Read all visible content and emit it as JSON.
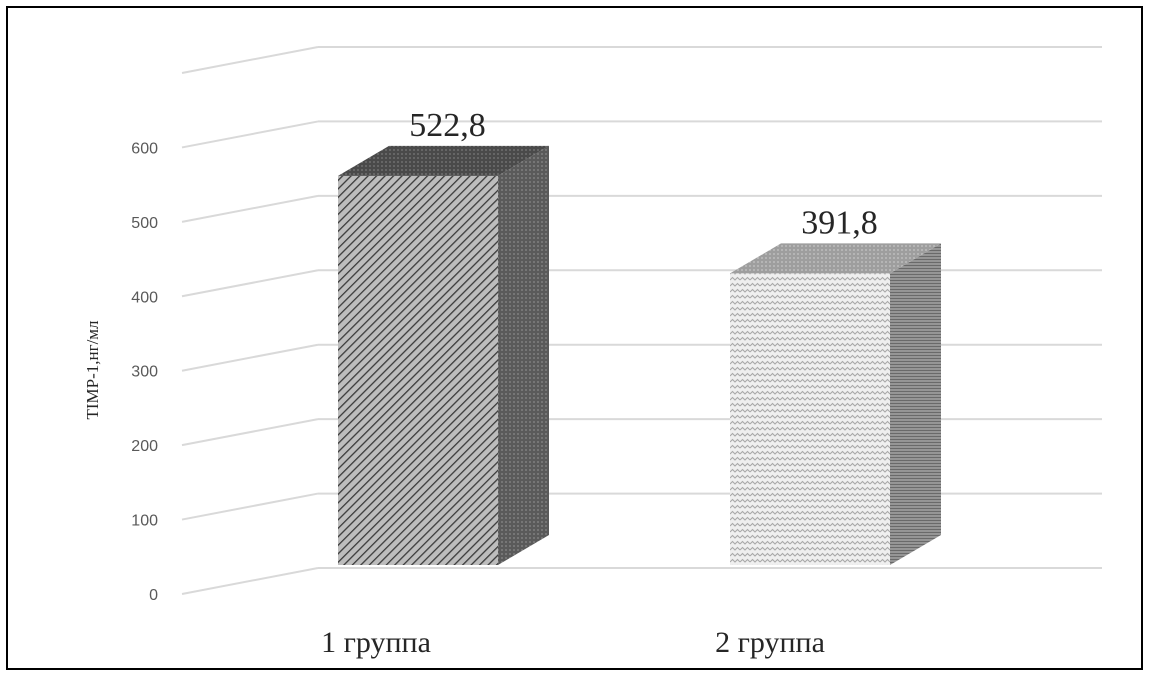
{
  "chart_data": {
    "type": "bar",
    "style": "3d-clustered-column",
    "categories": [
      "1 группа",
      "2 группа"
    ],
    "values": [
      522.8,
      391.8
    ],
    "data_labels": [
      "522,8",
      "391,8"
    ],
    "ylabel": "TIMP-1,нг/мл",
    "ylim": [
      0,
      600
    ],
    "yticks": [
      0,
      100,
      200,
      300,
      400,
      500,
      600
    ],
    "grid": true,
    "legend": "none",
    "colors": {
      "bar1_front": "#6e6e6e",
      "bar1_side": "#5a5a5a",
      "bar1_top": "#4a4a4a",
      "bar2_front": "#d4d4d4",
      "bar2_side": "#8c8c8c",
      "bar2_top": "#9e9e9e",
      "grid": "#d9d9d9"
    }
  }
}
